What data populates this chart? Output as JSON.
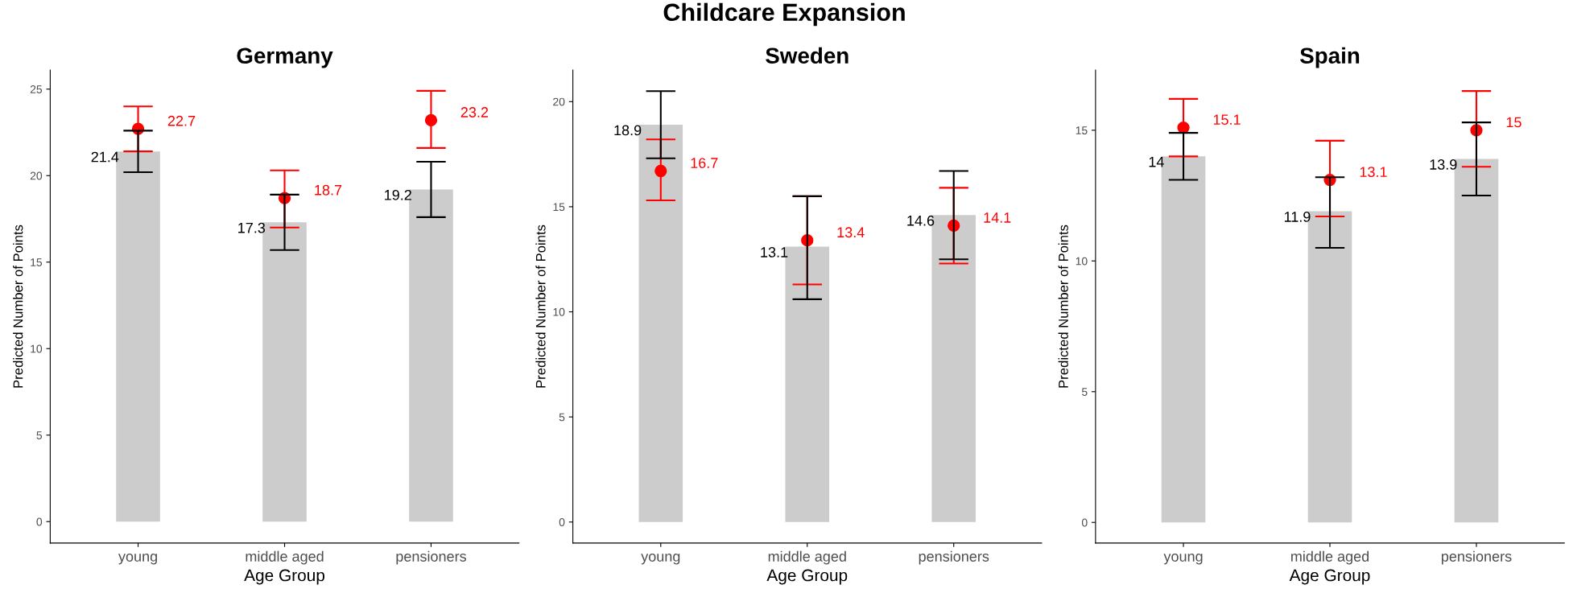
{
  "chart_data": [
    {
      "type": "bar",
      "title": "Germany",
      "annotations": [
        "Childcare Expansion"
      ],
      "xlabel": "Age Group",
      "ylabel": "Predicted Number of Points",
      "categories": [
        "young",
        "middle aged",
        "pensioners"
      ],
      "ylim": [
        -1.24,
        26.1
      ],
      "yticks": [
        0,
        5,
        10,
        15,
        20,
        25
      ],
      "grid": false,
      "legend": false,
      "data_labels": true,
      "series": [
        {
          "color": "#cccccc",
          "values": [
            21.4,
            17.3,
            19.2
          ],
          "errors": [
            [
              20.2,
              22.6
            ],
            [
              15.7,
              18.9
            ],
            [
              17.6,
              20.8
            ]
          ]
        },
        {
          "type": "scatter",
          "color": "#ff0000",
          "marker": "circle",
          "values": [
            22.7,
            18.7,
            23.2
          ],
          "errors": [
            [
              21.4,
              24.0
            ],
            [
              17.0,
              20.3
            ],
            [
              21.6,
              24.9
            ]
          ]
        }
      ]
    },
    {
      "type": "bar",
      "title": "Sweden",
      "xlabel": "Age Group",
      "ylabel": "Predicted Number of Points",
      "categories": [
        "young",
        "middle aged",
        "pensioners"
      ],
      "ylim": [
        -1.0,
        21.5
      ],
      "yticks": [
        0,
        5,
        10,
        15,
        20
      ],
      "grid": false,
      "legend": false,
      "data_labels": true,
      "series": [
        {
          "color": "#cccccc",
          "values": [
            18.9,
            13.1,
            14.6
          ],
          "errors": [
            [
              17.3,
              20.5
            ],
            [
              10.6,
              15.5
            ],
            [
              12.5,
              16.7
            ]
          ]
        },
        {
          "type": "scatter",
          "color": "#ff0000",
          "marker": "circle",
          "values": [
            16.7,
            13.4,
            14.1
          ],
          "errors": [
            [
              15.3,
              18.2
            ],
            [
              11.3,
              15.5
            ],
            [
              12.3,
              15.9
            ]
          ]
        }
      ]
    },
    {
      "type": "bar",
      "title": "Spain",
      "xlabel": "Age Group",
      "ylabel": "Predicted Number of Points",
      "categories": [
        "young",
        "middle aged",
        "pensioners"
      ],
      "ylim": [
        -0.79,
        17.3
      ],
      "yticks": [
        0,
        5,
        10,
        15
      ],
      "grid": false,
      "legend": false,
      "data_labels": true,
      "series": [
        {
          "color": "#cccccc",
          "values": [
            14,
            11.9,
            13.9
          ],
          "errors": [
            [
              13.1,
              14.9
            ],
            [
              10.5,
              13.2
            ],
            [
              12.5,
              15.3
            ]
          ]
        },
        {
          "type": "scatter",
          "color": "#ff0000",
          "marker": "circle",
          "values": [
            15.1,
            13.1,
            15
          ],
          "errors": [
            [
              14.0,
              16.2
            ],
            [
              11.7,
              14.6
            ],
            [
              13.6,
              16.5
            ]
          ]
        }
      ]
    }
  ]
}
